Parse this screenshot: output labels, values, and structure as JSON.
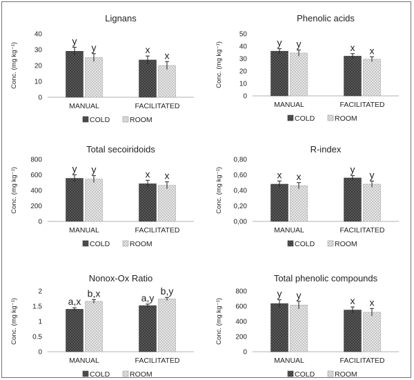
{
  "colors": {
    "cold_fill": "#5a5a5a",
    "room_fill": "#e2e2e2",
    "axis": "#b0b0b0",
    "border": "#6f6f6f"
  },
  "chart_data": [
    {
      "type": "bar",
      "title": "Lignans",
      "ylabel": "Conc. (mg kg⁻¹)",
      "categories": [
        "MANUAL",
        "FACILITATED"
      ],
      "series": [
        {
          "name": "COLD",
          "values": [
            29,
            23.5
          ],
          "errors": [
            2.5,
            2.5
          ],
          "letters": [
            "y",
            "x"
          ]
        },
        {
          "name": "ROOM",
          "values": [
            25,
            20
          ],
          "errors": [
            2.5,
            2.5
          ],
          "letters": [
            "y",
            "x"
          ]
        }
      ],
      "yticks": [
        "0",
        "10",
        "20",
        "30",
        "40"
      ],
      "ylim": [
        0,
        40
      ],
      "legend": "bottom"
    },
    {
      "type": "bar",
      "title": "Phenolic acids",
      "ylabel": "Conc. (mg kg⁻¹)",
      "categories": [
        "MANUAL",
        "FACILITATED"
      ],
      "series": [
        {
          "name": "COLD",
          "values": [
            36,
            32
          ],
          "errors": [
            2,
            2
          ],
          "letters": [
            "y",
            "x"
          ]
        },
        {
          "name": "ROOM",
          "values": [
            34.5,
            29.5
          ],
          "errors": [
            2.5,
            2
          ],
          "letters": [
            "y",
            "x"
          ]
        }
      ],
      "yticks": [
        "0",
        "10",
        "20",
        "30",
        "40",
        "50"
      ],
      "ylim": [
        0,
        50
      ],
      "legend": "bottom"
    },
    {
      "type": "bar",
      "title": "Total secoiridoids",
      "ylabel": "Conc. (mg kg⁻¹)",
      "categories": [
        "MANUAL",
        "FACILITATED"
      ],
      "series": [
        {
          "name": "COLD",
          "values": [
            555,
            485
          ],
          "errors": [
            45,
            45
          ],
          "letters": [
            "y",
            "x"
          ]
        },
        {
          "name": "ROOM",
          "values": [
            545,
            465
          ],
          "errors": [
            45,
            45
          ],
          "letters": [
            "y",
            "x"
          ]
        }
      ],
      "yticks": [
        "0",
        "200",
        "400",
        "600",
        "800"
      ],
      "ylim": [
        0,
        800
      ],
      "legend": "bottom"
    },
    {
      "type": "bar",
      "title": "R-index",
      "ylabel": "Conc. (mg kg⁻¹)",
      "categories": [
        "MANUAL",
        "FACILITATED"
      ],
      "series": [
        {
          "name": "COLD",
          "values": [
            0.48,
            0.56
          ],
          "errors": [
            0.04,
            0.03
          ],
          "letters": [
            "x",
            "y"
          ]
        },
        {
          "name": "ROOM",
          "values": [
            0.46,
            0.48
          ],
          "errors": [
            0.04,
            0.04
          ],
          "letters": [
            "x",
            "y"
          ]
        }
      ],
      "yticks": [
        "0,00",
        "0,20",
        "0,40",
        "0,60",
        "0,80"
      ],
      "ylim": [
        0,
        0.8
      ],
      "legend": "bottom"
    },
    {
      "type": "bar",
      "title": "Nonox-Ox Ratio",
      "ylabel": "Conc. (mg kg⁻¹)",
      "categories": [
        "MANUAL",
        "FACILITATED"
      ],
      "series": [
        {
          "name": "COLD",
          "values": [
            1.4,
            1.52
          ],
          "errors": [
            0.05,
            0.05
          ],
          "letters": [
            "a,x",
            "a,y"
          ]
        },
        {
          "name": "ROOM",
          "values": [
            1.66,
            1.74
          ],
          "errors": [
            0.06,
            0.05
          ],
          "letters": [
            "b,x",
            "b,y"
          ]
        }
      ],
      "yticks": [
        "0",
        "0.5",
        "1",
        "1.5",
        "2"
      ],
      "ylim": [
        0,
        2
      ],
      "legend": "bottom"
    },
    {
      "type": "bar",
      "title": "Total phenolic compounds",
      "ylabel": "Conc. (mg kg⁻¹)",
      "categories": [
        "MANUAL",
        "FACILITATED"
      ],
      "series": [
        {
          "name": "COLD",
          "values": [
            635,
            550
          ],
          "errors": [
            50,
            40
          ],
          "letters": [
            "y",
            "x"
          ]
        },
        {
          "name": "ROOM",
          "values": [
            615,
            520
          ],
          "errors": [
            50,
            50
          ],
          "letters": [
            "y",
            "x"
          ]
        }
      ],
      "yticks": [
        "0",
        "200",
        "400",
        "600",
        "800"
      ],
      "ylim": [
        0,
        800
      ],
      "legend": "bottom"
    }
  ]
}
